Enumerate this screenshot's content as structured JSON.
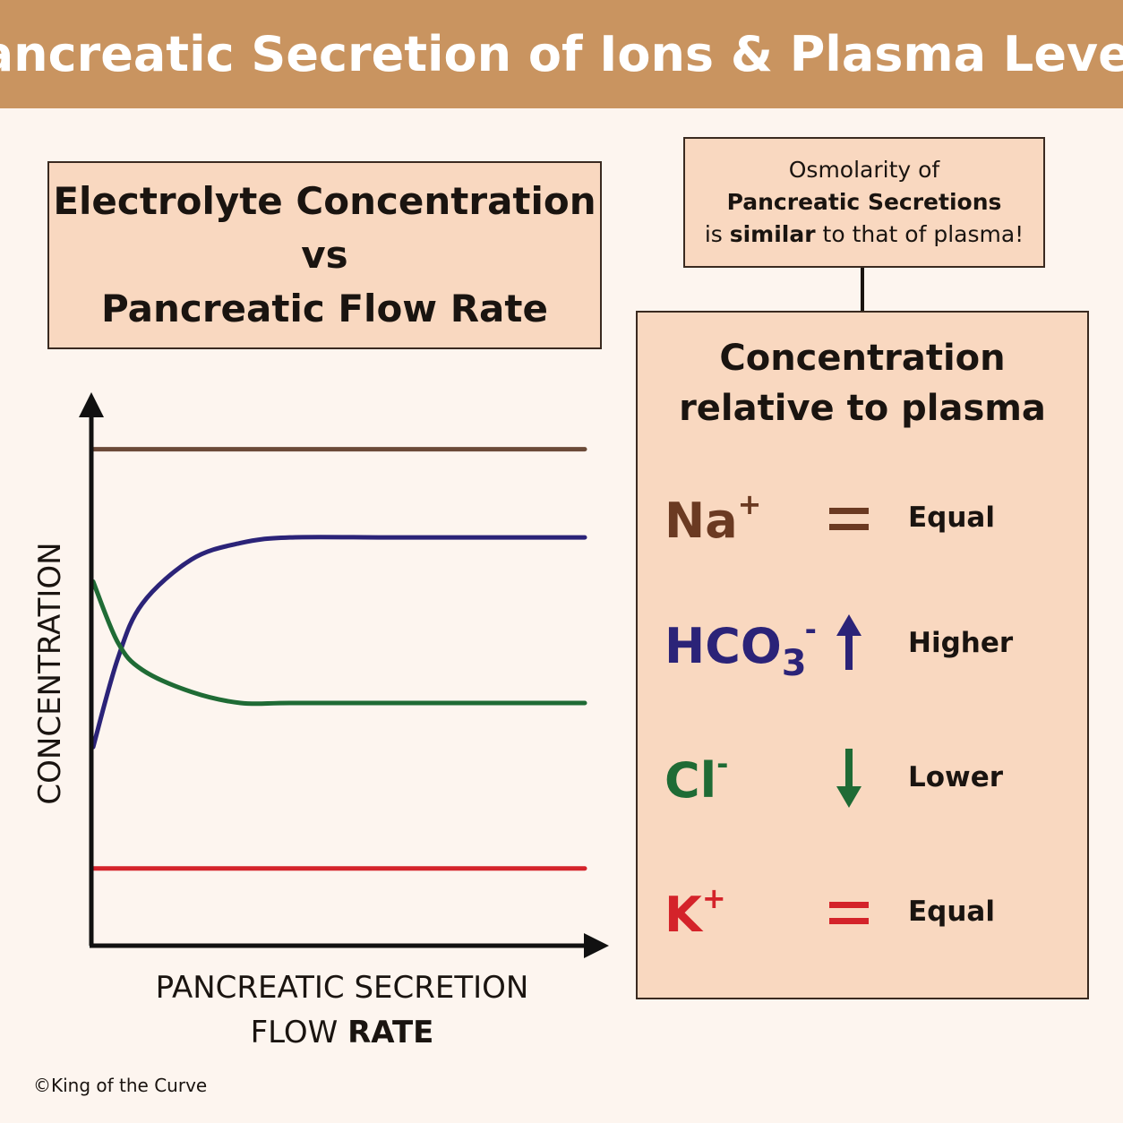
{
  "banner": {
    "title": "Pancreatic Secretion of Ions & Plasma Levels"
  },
  "chart_title": {
    "line1": "Electrolyte Concentration",
    "line2": "vs",
    "line3": "Pancreatic Flow Rate"
  },
  "osmolarity_note": {
    "line1": "Osmolarity of",
    "line2": "Pancreatic Secretions",
    "line3_pre": "is ",
    "line3_bold": "similar",
    "line3_post": " to that of plasma!"
  },
  "axes": {
    "y_label": "CONCENTRATION",
    "x_label_line1": "PANCREATIC SECRETION",
    "x_label_line2_a": "FLOW ",
    "x_label_line2_b": "RATE"
  },
  "relative_panel": {
    "title_line1": "Concentration",
    "title_line2": "relative to plasma",
    "ions": [
      {
        "base": "Na",
        "sup": "+",
        "sub": "",
        "color": "#6b3a22",
        "indicator": "equals-icon",
        "label": "Equal"
      },
      {
        "base": "HCO",
        "sup": "-",
        "sub": "3",
        "color": "#2b2378",
        "indicator": "arrow-up-icon",
        "label": "Higher"
      },
      {
        "base": "Cl",
        "sup": "-",
        "sub": "",
        "color": "#1f6b35",
        "indicator": "arrow-down-icon",
        "label": "Lower"
      },
      {
        "base": "K",
        "sup": "+",
        "sub": "",
        "color": "#d4232a",
        "indicator": "equals-icon",
        "label": "Equal"
      }
    ]
  },
  "chart_data": {
    "type": "line",
    "xlabel": "PANCREATIC SECRETION FLOW RATE",
    "ylabel": "CONCENTRATION",
    "grid": false,
    "series": [
      {
        "ion": "Na+",
        "color": "#6b4a38",
        "x": [
          0,
          0.2,
          0.4,
          0.6,
          0.8,
          1.0
        ],
        "y": [
          0.9,
          0.9,
          0.9,
          0.9,
          0.9,
          0.9
        ]
      },
      {
        "ion": "HCO3-",
        "color": "#2b2378",
        "x": [
          0,
          0.05,
          0.1,
          0.2,
          0.3,
          0.4,
          0.6,
          0.8,
          1.0
        ],
        "y": [
          0.36,
          0.52,
          0.62,
          0.7,
          0.73,
          0.74,
          0.74,
          0.74,
          0.74
        ]
      },
      {
        "ion": "Cl-",
        "color": "#1f6b35",
        "x": [
          0,
          0.05,
          0.1,
          0.2,
          0.3,
          0.4,
          0.6,
          0.8,
          1.0
        ],
        "y": [
          0.66,
          0.55,
          0.5,
          0.46,
          0.44,
          0.44,
          0.44,
          0.44,
          0.44
        ]
      },
      {
        "ion": "K+",
        "color": "#d4232a",
        "x": [
          0,
          0.2,
          0.4,
          0.6,
          0.8,
          1.0
        ],
        "y": [
          0.14,
          0.14,
          0.14,
          0.14,
          0.14,
          0.14
        ]
      }
    ]
  },
  "footer": {
    "copyright": "©King of the Curve"
  }
}
